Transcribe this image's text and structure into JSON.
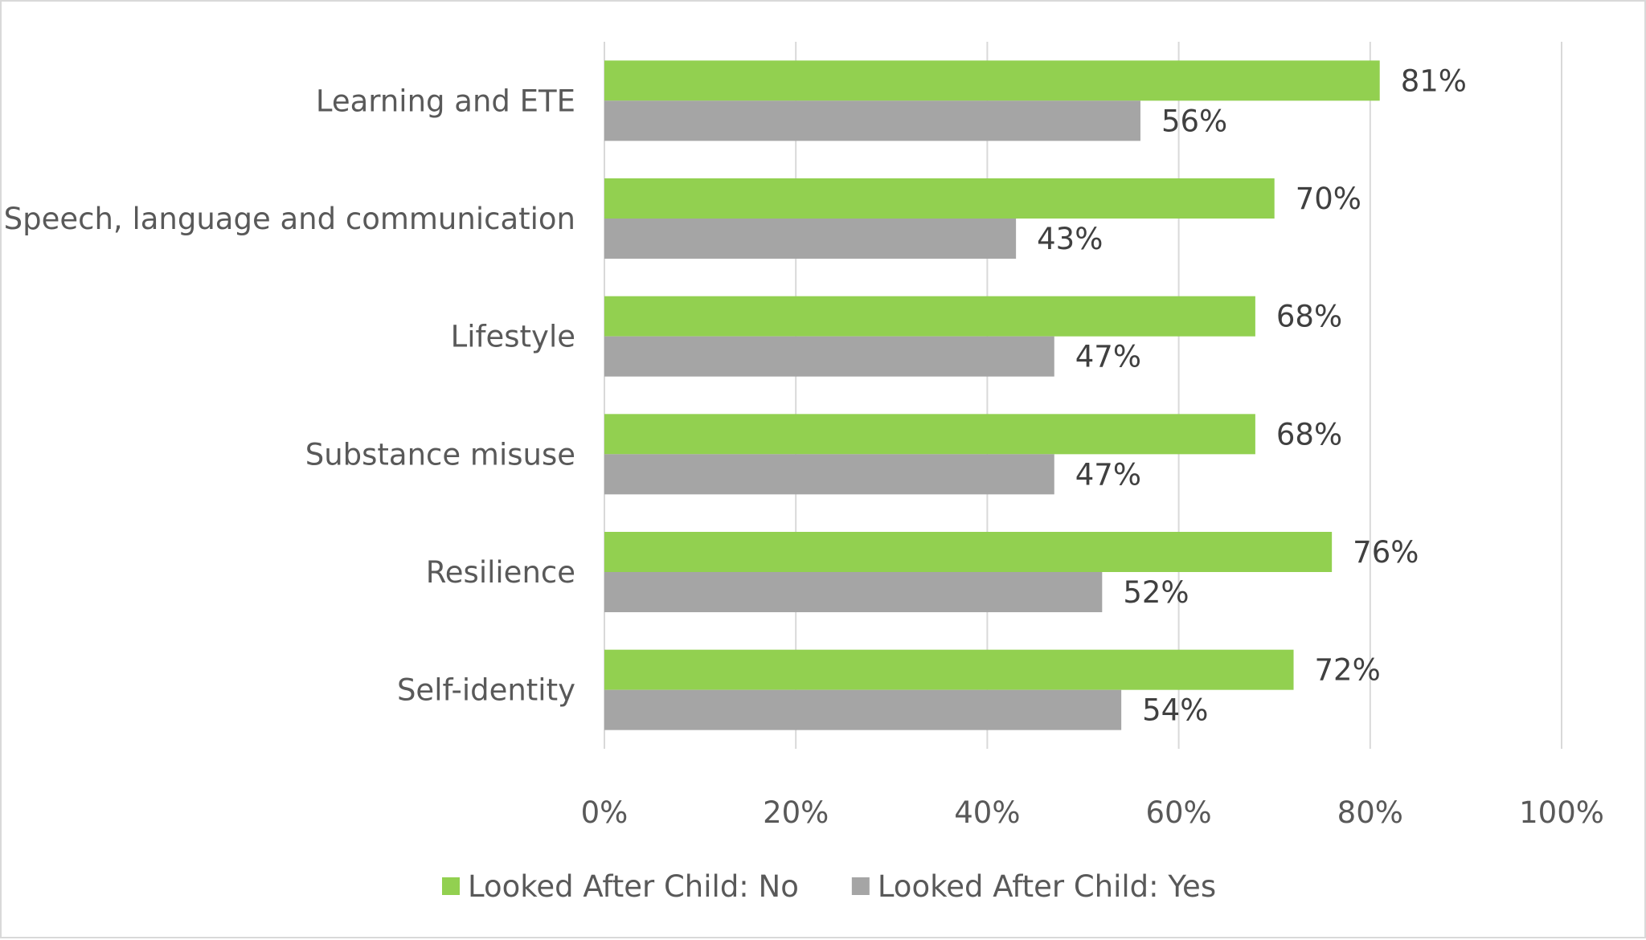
{
  "chart_data": {
    "type": "bar",
    "orientation": "horizontal",
    "categories": [
      "Learning and ETE",
      "Speech, language and communication",
      "Lifestyle",
      "Substance misuse",
      "Resilience",
      "Self-identity"
    ],
    "series": [
      {
        "name": "Looked After Child: No",
        "color": "#92d050",
        "values": [
          81,
          70,
          68,
          68,
          76,
          72
        ],
        "labels": [
          "81%",
          "70%",
          "68%",
          "68%",
          "76%",
          "72%"
        ]
      },
      {
        "name": "Looked After Child: Yes",
        "color": "#a5a5a5",
        "values": [
          56,
          43,
          47,
          47,
          52,
          54
        ],
        "labels": [
          "56%",
          "43%",
          "47%",
          "47%",
          "52%",
          "54%"
        ]
      }
    ],
    "xlim": [
      0,
      100
    ],
    "xticks": [
      "0%",
      "20%",
      "40%",
      "60%",
      "80%",
      "100%"
    ],
    "grid": true,
    "legend": "bottom",
    "title": "",
    "xlabel": "",
    "ylabel": ""
  }
}
